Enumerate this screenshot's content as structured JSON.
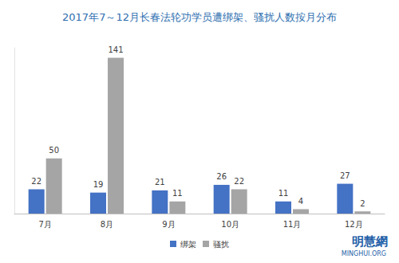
{
  "chart_data": {
    "type": "bar",
    "title": "2017年7～12月长春法轮功学员遭绑架、骚扰人数按月分布",
    "categories": [
      "7月",
      "8月",
      "9月",
      "10月",
      "11月",
      "12月"
    ],
    "series": [
      {
        "name": "绑架",
        "color": "#4472c4",
        "values": [
          22,
          19,
          21,
          26,
          11,
          27
        ]
      },
      {
        "name": "骚扰",
        "color": "#a5a5a5",
        "values": [
          50,
          141,
          11,
          22,
          4,
          2
        ]
      }
    ],
    "ylim": [
      0,
      150
    ],
    "grid": false,
    "legend": "bottom",
    "data_labels": true,
    "tick_labels": "x",
    "annotations": [
      "明慧網",
      "MINGHUI.ORG"
    ]
  }
}
